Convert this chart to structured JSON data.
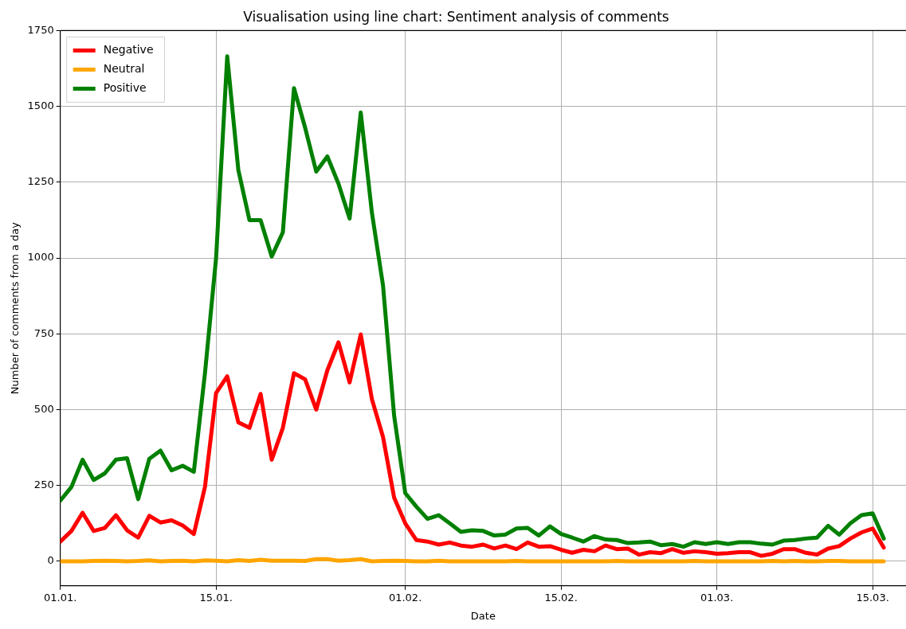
{
  "chart_data": {
    "type": "line",
    "title": "Visualisation using line chart: Sentiment analysis of comments",
    "xlabel": "Date",
    "ylabel": "Number of comments from a day",
    "x": [
      "--01-01",
      "--01-02",
      "--01-03",
      "--01-04",
      "--01-05",
      "--01-06",
      "--01-07",
      "--01-08",
      "--01-09",
      "--01-10",
      "--01-11",
      "--01-12",
      "--01-13",
      "--01-14",
      "--01-15",
      "--01-16",
      "--01-17",
      "--01-18",
      "--01-19",
      "--01-20",
      "--01-21",
      "--01-22",
      "--01-23",
      "--01-24",
      "--01-25",
      "--01-26",
      "--01-27",
      "--01-28",
      "--01-29",
      "--01-30",
      "--01-31",
      "--02-01",
      "--02-02",
      "--02-03",
      "--02-04",
      "--02-05",
      "--02-06",
      "--02-07",
      "--02-08",
      "--02-09",
      "--02-10",
      "--02-11",
      "--02-12",
      "--02-13",
      "--02-14",
      "--02-15",
      "--02-16",
      "--02-17",
      "--02-18",
      "--02-19",
      "--02-20",
      "--02-21",
      "--02-22",
      "--02-23",
      "--02-24",
      "--02-25",
      "--02-26",
      "--02-27",
      "--02-28",
      "--03-01",
      "--03-02",
      "--03-03",
      "--03-04",
      "--03-05",
      "--03-06",
      "--03-07",
      "--03-08",
      "--03-09",
      "--03-10",
      "--03-11",
      "--03-12",
      "--03-13",
      "--03-14",
      "--03-15",
      "--03-16"
    ],
    "series": [
      {
        "name": "Negative",
        "color": "#ff0000",
        "values": [
          65,
          100,
          160,
          100,
          110,
          152,
          102,
          78,
          150,
          128,
          135,
          118,
          90,
          245,
          555,
          610,
          458,
          440,
          552,
          335,
          440,
          620,
          600,
          500,
          630,
          722,
          590,
          748,
          535,
          410,
          210,
          125,
          70,
          65,
          55,
          62,
          52,
          48,
          55,
          42,
          52,
          40,
          62,
          48,
          50,
          38,
          28,
          38,
          33,
          52,
          40,
          42,
          22,
          30,
          27,
          40,
          28,
          33,
          30,
          25,
          27,
          30,
          30,
          18,
          25,
          40,
          40,
          28,
          22,
          42,
          50,
          75,
          95,
          108,
          45
        ]
      },
      {
        "name": "Neutral",
        "color": "#ffa500",
        "values": [
          0,
          0,
          0,
          1,
          2,
          1,
          0,
          1,
          3,
          0,
          1,
          2,
          0,
          3,
          2,
          0,
          4,
          1,
          5,
          2,
          2,
          2,
          1,
          7,
          7,
          2,
          4,
          7,
          0,
          1,
          2,
          1,
          0,
          0,
          2,
          0,
          0,
          0,
          0,
          0,
          0,
          1,
          0,
          0,
          0,
          0,
          0,
          0,
          0,
          0,
          1,
          0,
          0,
          0,
          0,
          0,
          0,
          1,
          0,
          0,
          0,
          0,
          0,
          0,
          1,
          0,
          1,
          0,
          0,
          1,
          1,
          0,
          0,
          0,
          0
        ]
      },
      {
        "name": "Positive",
        "color": "#008000",
        "values": [
          200,
          245,
          335,
          268,
          290,
          335,
          340,
          205,
          338,
          365,
          300,
          315,
          295,
          620,
          1000,
          1665,
          1290,
          1125,
          1125,
          1005,
          1085,
          1560,
          1430,
          1285,
          1335,
          1245,
          1130,
          1480,
          1150,
          910,
          480,
          225,
          180,
          140,
          152,
          125,
          97,
          102,
          100,
          85,
          88,
          108,
          110,
          85,
          115,
          90,
          78,
          65,
          83,
          72,
          70,
          60,
          62,
          65,
          53,
          57,
          48,
          63,
          57,
          63,
          57,
          63,
          63,
          58,
          55,
          68,
          70,
          75,
          78,
          117,
          88,
          125,
          152,
          158,
          75
        ]
      }
    ],
    "xlim": [
      "--01-01",
      "--03-18"
    ],
    "xticks": [
      {
        "value": "--01-01",
        "label": "01.01."
      },
      {
        "value": "--01-15",
        "label": "15.01."
      },
      {
        "value": "--02-01",
        "label": "01.02."
      },
      {
        "value": "--02-15",
        "label": "15.02."
      },
      {
        "value": "--03-01",
        "label": "01.03."
      },
      {
        "value": "--03-15",
        "label": "15.03."
      }
    ],
    "ylim": [
      -81,
      1750
    ],
    "yticks": [
      0,
      250,
      500,
      750,
      1000,
      1250,
      1500,
      1750
    ],
    "grid": true,
    "legend": "top left",
    "line_style": "solid",
    "marker": "none"
  }
}
